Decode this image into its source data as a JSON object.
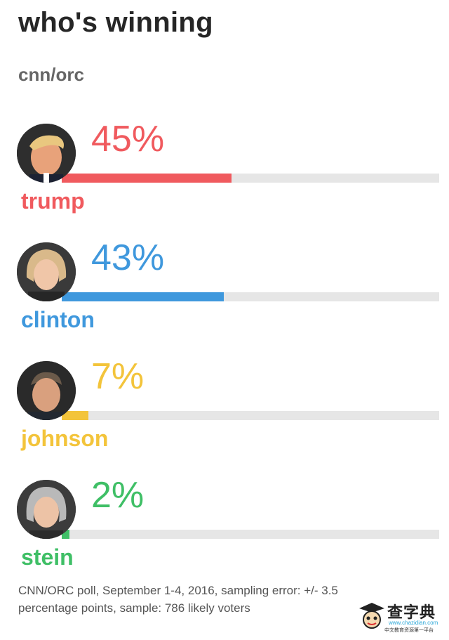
{
  "title": "who's winning",
  "subtitle": "cnn/orc",
  "chart_data": {
    "type": "bar",
    "orientation": "horizontal",
    "ylim": [
      0,
      100
    ],
    "categories": [
      "trump",
      "clinton",
      "johnson",
      "stein"
    ],
    "values": [
      45,
      43,
      7,
      2
    ],
    "value_labels": [
      "45%",
      "43%",
      "7%",
      "2%"
    ],
    "colors": [
      "#f05a5e",
      "#3f98dd",
      "#f3c43b",
      "#3fbf66"
    ],
    "track_color": "#e6e6e6",
    "grid": false,
    "legend": "none"
  },
  "footnote": {
    "line1": "CNN/ORC poll, September 1-4, 2016, sampling error: +/- 3.5",
    "line2": "percentage points, sample: 786 likely voters"
  },
  "logo": {
    "brand": "查字典",
    "domain": "www.chazidian.com",
    "tagline": "中文教育资源第一平台"
  }
}
